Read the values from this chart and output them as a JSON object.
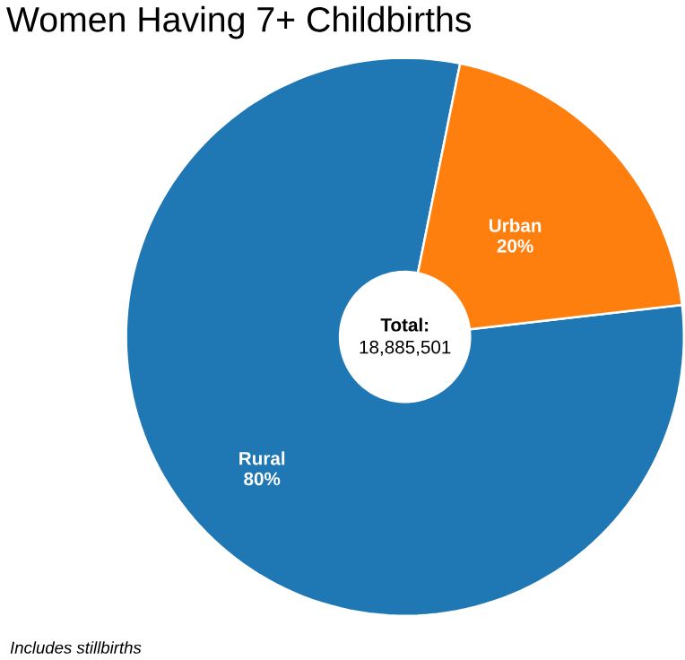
{
  "chart_data": {
    "type": "donut",
    "title": "Women Having 7+ Childbirths",
    "categories": [
      "Rural",
      "Urban"
    ],
    "values": [
      80,
      20
    ],
    "value_labels": [
      "80%",
      "20%"
    ],
    "colors": [
      "#1f77b4",
      "#ff7f0e"
    ],
    "annotations": [
      "Total:",
      "18,885,501",
      "Includes stillbirths"
    ]
  }
}
